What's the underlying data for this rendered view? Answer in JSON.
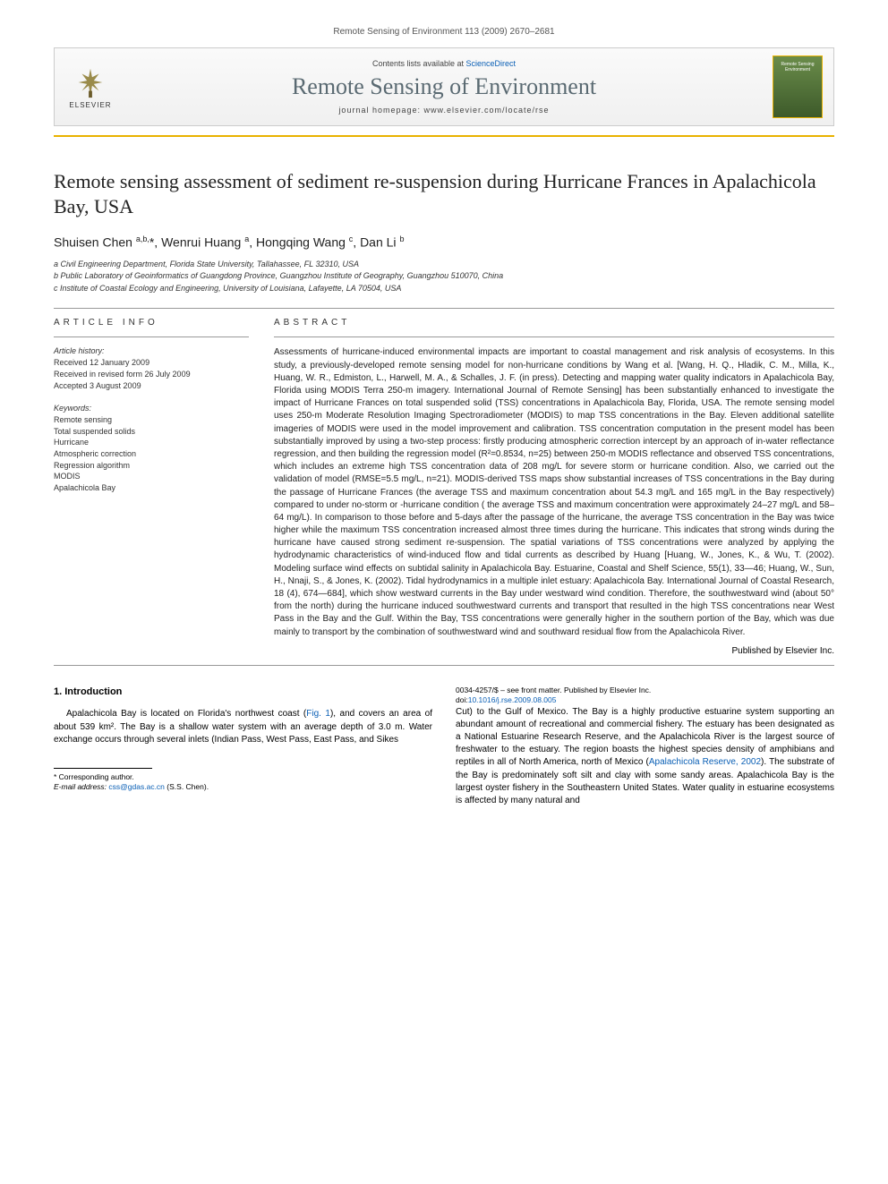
{
  "running_header": "Remote Sensing of Environment 113 (2009) 2670–2681",
  "masthead": {
    "publisher_name": "ELSEVIER",
    "contents_prefix": "Contents lists available at ",
    "contents_link": "ScienceDirect",
    "journal_name": "Remote Sensing of Environment",
    "homepage_prefix": "journal homepage: ",
    "homepage_url": "www.elsevier.com/locate/rse",
    "cover_text": "Remote Sensing Environment"
  },
  "article": {
    "title": "Remote sensing assessment of sediment re-suspension during Hurricane Frances in Apalachicola Bay, USA",
    "authors_html": "Shuisen Chen <sup>a,b,</sup>*, Wenrui Huang <sup>a</sup>, Hongqing Wang <sup>c</sup>, Dan Li <sup>b</sup>",
    "affiliations": [
      "a  Civil Engineering Department, Florida State University, Tallahassee, FL 32310, USA",
      "b  Public Laboratory of Geoinformatics of Guangdong Province, Guangzhou Institute of Geography, Guangzhou 510070, China",
      "c  Institute of Coastal Ecology and Engineering, University of Louisiana, Lafayette, LA 70504, USA"
    ]
  },
  "info": {
    "section_label": "article info",
    "history_label": "Article history:",
    "history_lines": [
      "Received 12 January 2009",
      "Received in revised form 26 July 2009",
      "Accepted 3 August 2009"
    ],
    "keywords_label": "Keywords:",
    "keywords": [
      "Remote sensing",
      "Total suspended solids",
      "Hurricane",
      "Atmospheric correction",
      "Regression algorithm",
      "MODIS",
      "Apalachicola Bay"
    ]
  },
  "abstract": {
    "section_label": "abstract",
    "body": "Assessments of hurricane-induced environmental impacts are important to coastal management and risk analysis of ecosystems. In this study, a previously-developed remote sensing model for non-hurricane conditions by Wang et al. [Wang, H. Q., Hladik, C. M., Milla, K., Huang, W. R., Edmiston, L., Harwell, M. A., & Schalles, J. F. (in press). Detecting and mapping water quality indicators in Apalachicola Bay, Florida using MODIS Terra 250-m imagery. International Journal of Remote Sensing] has been substantially enhanced to investigate the impact of Hurricane Frances on total suspended solid (TSS) concentrations in Apalachicola Bay, Florida, USA. The remote sensing model uses 250-m Moderate Resolution Imaging Spectroradiometer (MODIS) to map TSS concentrations in the Bay. Eleven additional satellite imageries of MODIS were used in the model improvement and calibration. TSS concentration computation in the present model has been substantially improved by using a two-step process: firstly producing atmospheric correction intercept by an approach of in-water reflectance regression, and then building the regression model (R²=0.8534, n=25) between 250-m MODIS reflectance and observed TSS concentrations, which includes an extreme high TSS concentration data of 208 mg/L for severe storm or hurricane condition. Also, we carried out the validation of model (RMSE=5.5 mg/L, n=21). MODIS-derived TSS maps show substantial increases of TSS concentrations in the Bay during the passage of Hurricane Frances (the average TSS and maximum concentration about 54.3 mg/L and 165 mg/L in the Bay respectively) compared to under no-storm or -hurricane condition ( the average TSS and maximum concentration were approximately 24–27 mg/L and 58–64 mg/L). In comparison to those before and 5-days after the passage of the hurricane, the average TSS concentration in the Bay was twice higher while the maximum TSS concentration increased almost three times during the hurricane. This indicates that strong winds during the hurricane have caused strong sediment re-suspension. The spatial variations of TSS concentrations were analyzed by applying the hydrodynamic characteristics of wind-induced flow and tidal currents as described by Huang [Huang, W., Jones, K., & Wu, T. (2002). Modeling surface wind effects on subtidal salinity in Apalachicola Bay. Estuarine, Coastal and Shelf Science, 55(1), 33—46; Huang, W., Sun, H., Nnaji, S., & Jones, K. (2002). Tidal hydrodynamics in a multiple inlet estuary: Apalachicola Bay. International Journal of Coastal Research, 18 (4), 674—684], which show westward currents in the Bay under westward wind condition. Therefore, the southwestward wind (about 50° from the north) during the hurricane induced southwestward currents and transport that resulted in the high TSS concentrations near West Pass in the Bay and the Gulf. Within the Bay, TSS concentrations were generally higher in the southern portion of the Bay, which was due mainly to transport by the combination of southwestward wind and southward residual flow from the Apalachicola River.",
    "publisher_note": "Published by Elsevier Inc."
  },
  "intro": {
    "heading": "1. Introduction",
    "para1_pre": "Apalachicola Bay is located on Florida's northwest coast (",
    "para1_link": "Fig. 1",
    "para1_post": "), and covers an area of about 539 km². The Bay is a shallow water system with an average depth of 3.0 m. Water exchange occurs through several inlets (Indian Pass, West Pass, East Pass, and Sikes",
    "para2_pre": "Cut) to the Gulf of Mexico. The Bay is a highly productive estuarine system supporting an abundant amount of recreational and commercial fishery. The estuary has been designated as a National Estuarine Research Reserve, and the Apalachicola River is the largest source of freshwater to the estuary. The region boasts the highest species density of amphibians and reptiles in all of North America, north of Mexico (",
    "para2_link": "Apalachicola Reserve, 2002",
    "para2_post": "). The substrate of the Bay is predominately soft silt and clay with some sandy areas. Apalachicola Bay is the largest oyster fishery in the Southeastern United States. Water quality in estuarine ecosystems is affected by many natural and"
  },
  "footnotes": {
    "corresponding": "* Corresponding author.",
    "email_label": "E-mail address: ",
    "email": "css@gdas.ac.cn",
    "email_suffix": " (S.S. Chen)."
  },
  "copyright": {
    "line1": "0034-4257/$ – see front matter. Published by Elsevier Inc.",
    "doi_prefix": "doi:",
    "doi": "10.1016/j.rse.2009.08.005"
  },
  "colors": {
    "accent_orange": "#e9b200",
    "link_blue": "#0a5fb5",
    "journal_gray": "#5a6a72"
  }
}
